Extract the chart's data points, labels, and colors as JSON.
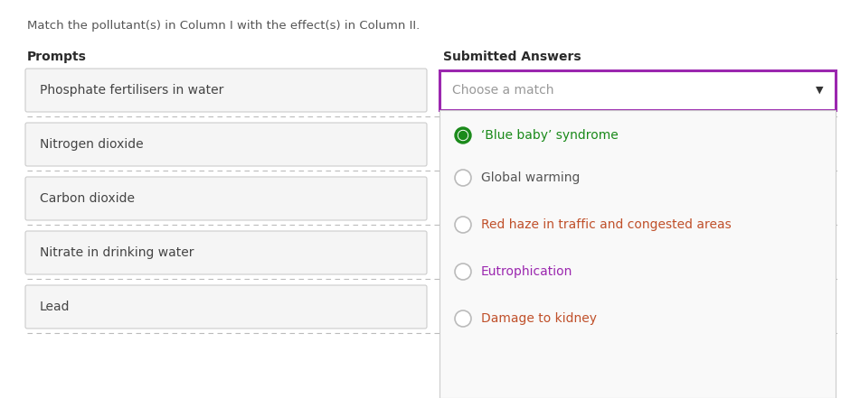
{
  "title": "Match the pollutant(s) in Column I with the effect(s) in Column II.",
  "prompts_label": "Prompts",
  "answers_label": "Submitted Answers",
  "prompts": [
    "Phosphate fertilisers in water",
    "Nitrogen dioxide",
    "Carbon dioxide",
    "Nitrate in drinking water",
    "Lead"
  ],
  "dropdown_placeholder": "Choose a match",
  "dropdown_border_color": "#9b27af",
  "dropdown_bg": "#ffffff",
  "answers": [
    "‘Blue baby’ syndrome",
    "Global warming",
    "Red haze in traffic and congested areas",
    "Eutrophication",
    "Damage to kidney"
  ],
  "answer_colors": [
    "#1a8a1a",
    "#555555",
    "#c0502a",
    "#9b27af",
    "#c0502a"
  ],
  "bg_color": "#ffffff",
  "prompt_box_bg": "#f5f5f5",
  "prompt_box_border": "#cccccc",
  "dropdown_panel_bg": "#f9f9f9",
  "dropdown_panel_border": "#cccccc",
  "radio_selected_fill": "#1a8a1a",
  "radio_unselected_edge": "#bbbbbb",
  "title_color": "#555555",
  "label_color": "#2a2a2a",
  "prompt_text_color": "#444444",
  "dashed_line_color": "#bbbbbb",
  "arrow_color": "#333333",
  "placeholder_color": "#999999"
}
